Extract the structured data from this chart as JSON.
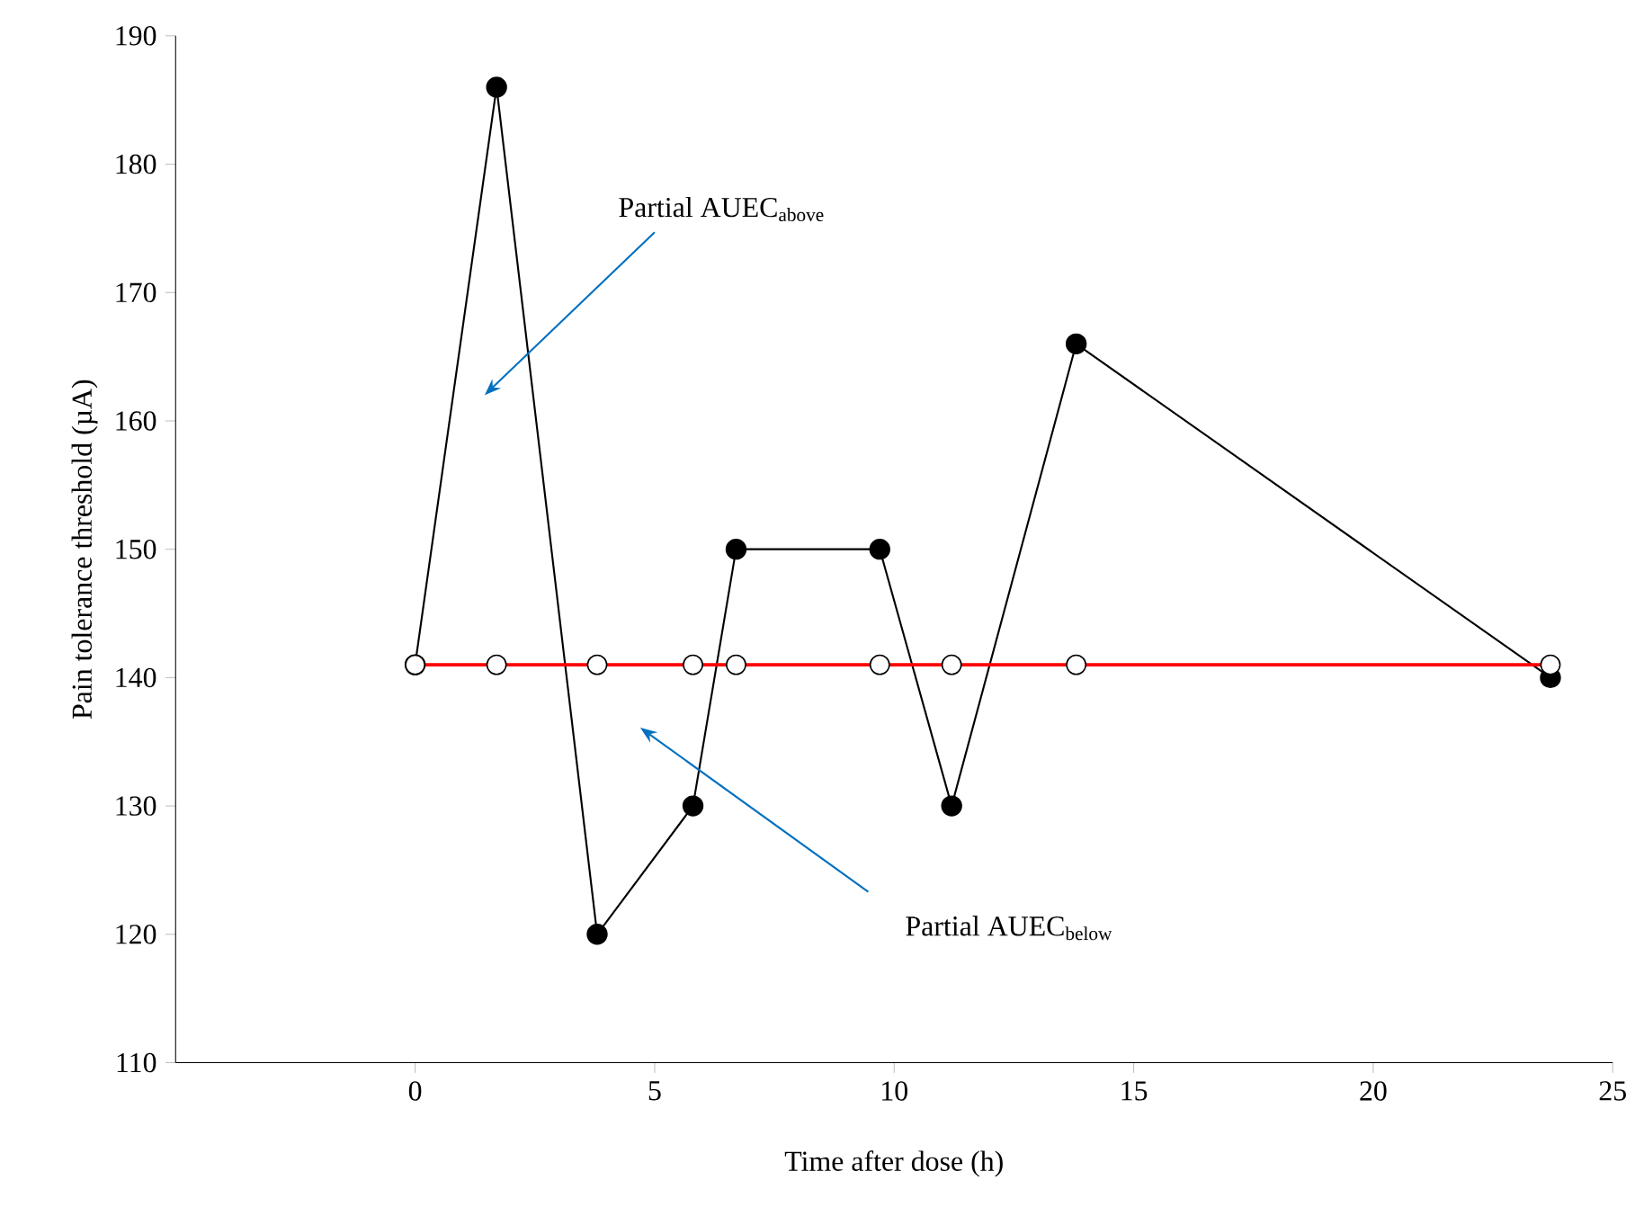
{
  "chart_data": {
    "type": "line",
    "xlabel": "Time after dose (h)",
    "ylabel": "Pain tolerance threshold (µA)",
    "series": [
      {
        "color": "#000000",
        "marker": "circle",
        "x": [
          0,
          1.7,
          3.8,
          5.8,
          6.7,
          9.7,
          11.2,
          13.8,
          23.7
        ],
        "values": [
          141,
          186,
          120,
          130,
          150,
          150,
          130,
          166,
          140
        ]
      },
      {
        "color": "#ff0000",
        "marker": "circle",
        "x": [
          0,
          1.7,
          3.8,
          5.8,
          6.7,
          9.7,
          11.2,
          13.8,
          23.7
        ],
        "values": [
          141,
          141,
          141,
          141,
          141,
          141,
          141,
          141,
          141
        ]
      }
    ],
    "annotations": [
      "Partial AUEC$_{above}$",
      "Partial AUEC$_{below}$"
    ],
    "xlim": [
      -5,
      25
    ],
    "xticks": [
      0,
      5,
      10,
      15,
      20,
      25
    ],
    "ylim": [
      110,
      190
    ],
    "yticks": [
      110,
      120,
      130,
      140,
      150,
      160,
      170,
      180,
      190
    ]
  }
}
